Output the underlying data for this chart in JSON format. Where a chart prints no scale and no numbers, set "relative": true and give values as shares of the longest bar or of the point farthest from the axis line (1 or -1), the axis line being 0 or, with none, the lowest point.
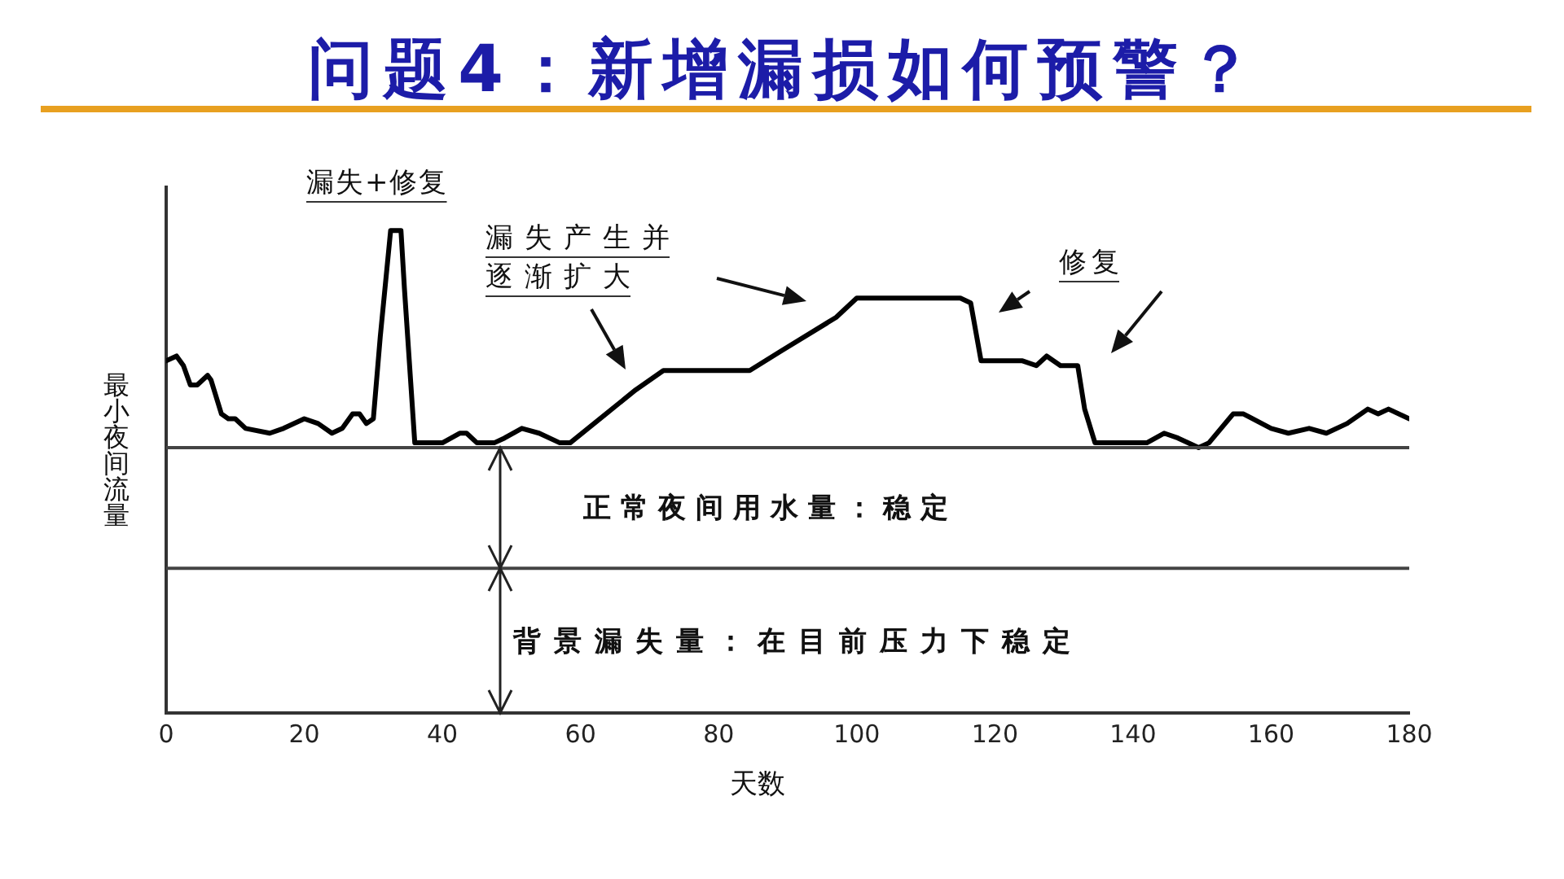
{
  "chart_data": {
    "type": "line",
    "title": "问题4：新增漏损如何预警？",
    "xlabel": "天数",
    "ylabel": "最小夜间流量",
    "relative": true,
    "tick_labels": "x",
    "xlim": [
      0,
      180
    ],
    "xticks": [
      0,
      20,
      40,
      60,
      80,
      100,
      120,
      140,
      160,
      180
    ],
    "x": [
      0,
      1.5,
      2.5,
      3.5,
      4.5,
      6,
      6.5,
      8,
      9,
      10,
      11.5,
      15,
      17,
      20,
      22,
      24,
      25.5,
      27,
      28,
      29,
      30,
      31,
      32.5,
      34,
      34.5,
      36,
      40,
      42.5,
      43.5,
      45,
      47.5,
      49,
      51.5,
      54,
      57,
      58.5,
      68,
      72,
      84.5,
      89,
      97,
      100,
      115,
      116.5,
      118,
      120,
      124,
      126,
      127.5,
      129.5,
      132,
      133,
      134.5,
      136.5,
      139.5,
      142,
      144.5,
      146.5,
      149.5,
      151,
      154.5,
      156,
      160,
      162.5,
      165.5,
      168,
      171,
      174,
      175.5,
      177,
      180
    ],
    "values": [
      0.73,
      0.74,
      0.72,
      0.68,
      0.68,
      0.7,
      0.69,
      0.62,
      0.61,
      0.61,
      0.59,
      0.58,
      0.59,
      0.61,
      0.6,
      0.58,
      0.59,
      0.62,
      0.62,
      0.6,
      0.61,
      0.78,
      1,
      1,
      0.88,
      0.56,
      0.56,
      0.58,
      0.58,
      0.56,
      0.56,
      0.57,
      0.59,
      0.58,
      0.56,
      0.56,
      0.67,
      0.71,
      0.71,
      0.75,
      0.82,
      0.86,
      0.86,
      0.85,
      0.73,
      0.73,
      0.73,
      0.72,
      0.74,
      0.72,
      0.72,
      0.63,
      0.56,
      0.56,
      0.56,
      0.56,
      0.58,
      0.57,
      0.55,
      0.56,
      0.62,
      0.62,
      0.59,
      0.58,
      0.59,
      0.58,
      0.6,
      0.63,
      0.62,
      0.63,
      0.61
    ],
    "color": "#000000",
    "ref_lines": [
      {
        "axis": "y",
        "value": 0.55
      },
      {
        "axis": "y",
        "value": 0.3
      }
    ],
    "annotations": [
      "漏失+修复",
      "漏失产生并逐渐扩大",
      "修复",
      "正常夜间用水量：稳定",
      "背景漏失量：在目前压力下稳定"
    ]
  }
}
